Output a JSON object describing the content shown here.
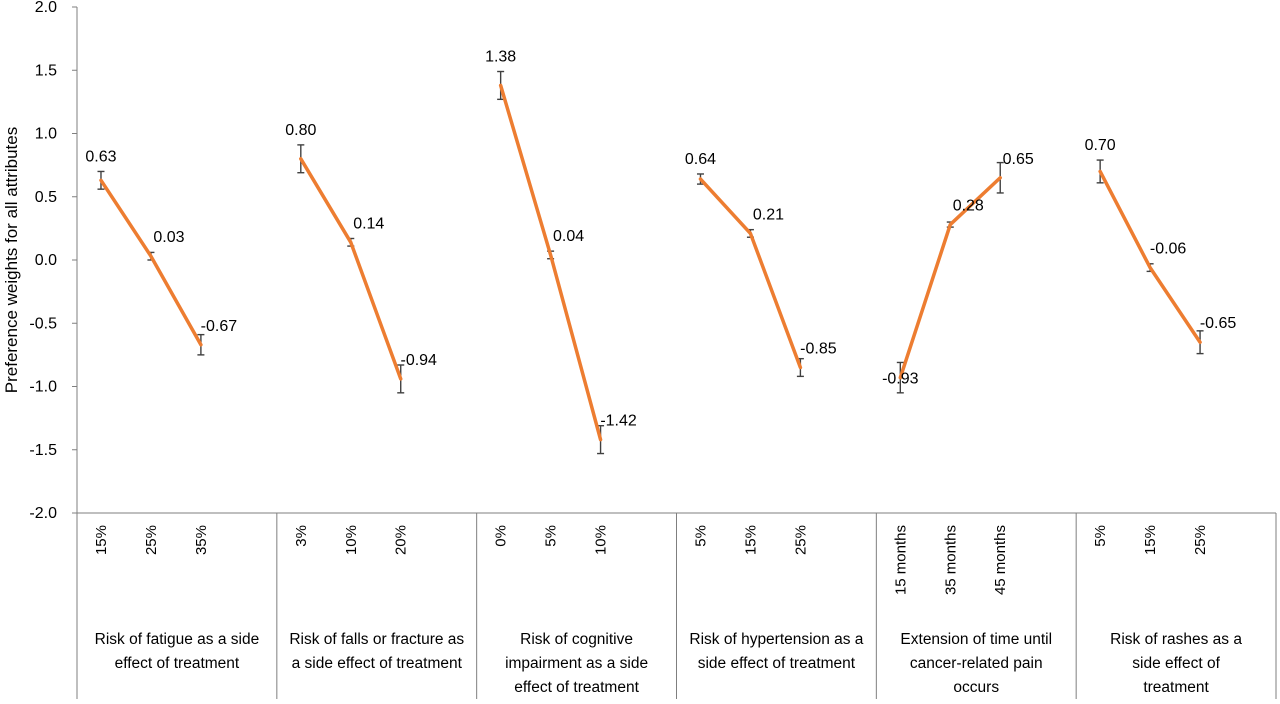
{
  "chart_data": {
    "type": "line",
    "ylabel": "Preference weights for all attributes",
    "xlabel": "",
    "ylim": [
      -2.0,
      2.0
    ],
    "yticks": [
      2.0,
      1.5,
      1.0,
      0.5,
      0.0,
      -0.5,
      -1.0,
      -1.5,
      -2.0
    ],
    "ytick_labels": [
      "2.0",
      "1.5",
      "1.0",
      "0.5",
      "0.0",
      "-0.5",
      "-1.0",
      "-1.5",
      "-2.0"
    ],
    "grid": false,
    "legend": "none",
    "line_color": "#ED7D31",
    "error_bar_color": "#404040",
    "groups": [
      {
        "name": "Risk of fatigue as a side effect of treatment",
        "name_lines": [
          "Risk of fatigue as a side",
          "effect of treatment"
        ],
        "categories": [
          "15%",
          "25%",
          "35%"
        ],
        "values": [
          0.63,
          0.03,
          -0.67
        ],
        "labels": [
          "0.63",
          "0.03",
          "-0.67"
        ],
        "error": [
          0.07,
          0.03,
          0.08
        ]
      },
      {
        "name": "Risk of falls or fracture as a side effect of treatment",
        "name_lines": [
          "Risk of falls or fracture as",
          "a side effect of treatment"
        ],
        "categories": [
          "3%",
          "10%",
          "20%"
        ],
        "values": [
          0.8,
          0.14,
          -0.94
        ],
        "labels": [
          "0.80",
          "0.14",
          "-0.94"
        ],
        "error": [
          0.11,
          0.03,
          0.11
        ]
      },
      {
        "name": "Risk of cognitive impairment as a side effect of treatment",
        "name_lines": [
          "Risk of cognitive",
          "impairment as a side",
          "effect of treatment"
        ],
        "categories": [
          "0%",
          "5%",
          "10%"
        ],
        "values": [
          1.38,
          0.04,
          -1.42
        ],
        "labels": [
          "1.38",
          "0.04",
          "-1.42"
        ],
        "error": [
          0.11,
          0.03,
          0.11
        ]
      },
      {
        "name": "Risk of hypertension as a side effect of treatment",
        "name_lines": [
          "Risk of hypertension as a",
          "side effect of treatment"
        ],
        "categories": [
          "5%",
          "15%",
          "25%"
        ],
        "values": [
          0.64,
          0.21,
          -0.85
        ],
        "labels": [
          "0.64",
          "0.21",
          "-0.85"
        ],
        "error": [
          0.04,
          0.03,
          0.07
        ]
      },
      {
        "name": "Extension of time until cancer-related pain occurs",
        "name_lines": [
          "Extension of time until",
          "cancer-related pain",
          "occurs"
        ],
        "categories": [
          "15 months",
          "35 months",
          "45 months"
        ],
        "values": [
          -0.93,
          0.28,
          0.65
        ],
        "labels": [
          "-0.93",
          "0.28",
          "0.65"
        ],
        "error": [
          0.12,
          0.02,
          0.12
        ]
      },
      {
        "name": "Risk of rashes as a side effect of treatment",
        "name_lines": [
          "Risk of rashes as a",
          "side effect of",
          "treatment"
        ],
        "categories": [
          "5%",
          "15%",
          "25%"
        ],
        "values": [
          0.7,
          -0.06,
          -0.65
        ],
        "labels": [
          "0.70",
          "-0.06",
          "-0.65"
        ],
        "error": [
          0.09,
          0.03,
          0.09
        ]
      }
    ]
  }
}
